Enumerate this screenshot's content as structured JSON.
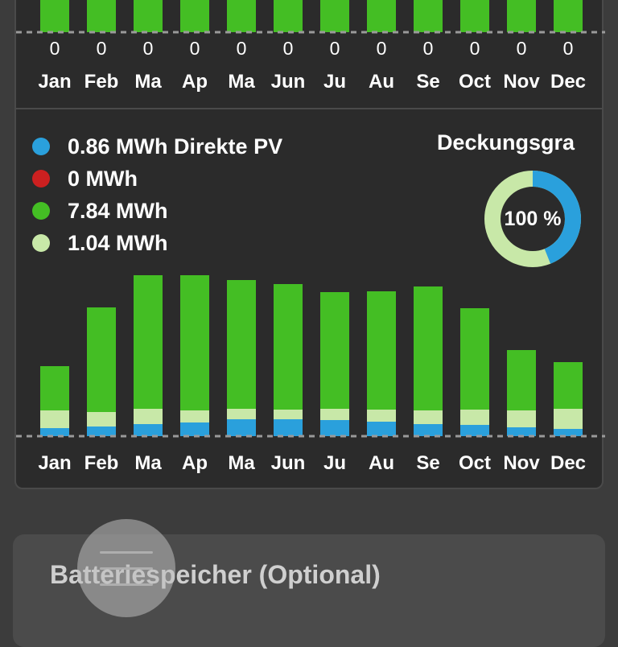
{
  "colors": {
    "direct_pv": "#2aa0dc",
    "grid": "#cc2020",
    "self_battery": "#44be24",
    "light_green": "#c8e8a8",
    "background": "#3c3c3c",
    "card": "#2b2b2b"
  },
  "top_chart": {
    "months": [
      "Jan",
      "Feb",
      "Ma",
      "Ap",
      "Ma",
      "Jun",
      "Ju",
      "Au",
      "Se",
      "Oct",
      "Nov",
      "Dec"
    ],
    "values": [
      "0",
      "0",
      "0",
      "0",
      "0",
      "0",
      "0",
      "0",
      "0",
      "0",
      "0",
      "0"
    ]
  },
  "legend": {
    "items": [
      {
        "label": "0.86 MWh Direkte PV",
        "color": "#2aa0dc"
      },
      {
        "label": "0 MWh",
        "color": "#cc2020"
      },
      {
        "label": "7.84 MWh",
        "color": "#44be24"
      },
      {
        "label": "1.04 MWh",
        "color": "#c8e8a8"
      }
    ]
  },
  "donut": {
    "title": "Deckungsgra",
    "value_label": "100 %",
    "blue_fraction": 0.44
  },
  "chart_data": {
    "type": "bar",
    "stacked": true,
    "categories": [
      "Jan",
      "Feb",
      "Ma",
      "Ap",
      "Ma",
      "Jun",
      "Ju",
      "Au",
      "Se",
      "Oct",
      "Nov",
      "Dec"
    ],
    "series": [
      {
        "name": "0.86 MWh Direkte PV",
        "color": "#2aa0dc",
        "values": [
          10,
          12,
          15,
          17,
          21,
          21,
          20,
          18,
          15,
          14,
          11,
          9
        ]
      },
      {
        "name": "1.04 MWh",
        "color": "#c8e8a8",
        "values": [
          22,
          18,
          19,
          15,
          13,
          12,
          14,
          15,
          17,
          19,
          21,
          25
        ]
      },
      {
        "name": "7.84 MWh",
        "color": "#44be24",
        "values": [
          55,
          130,
          166,
          168,
          160,
          156,
          145,
          147,
          154,
          126,
          75,
          58
        ]
      }
    ]
  },
  "bottom_card": {
    "title": "Batteriespeicher (Optional)"
  }
}
